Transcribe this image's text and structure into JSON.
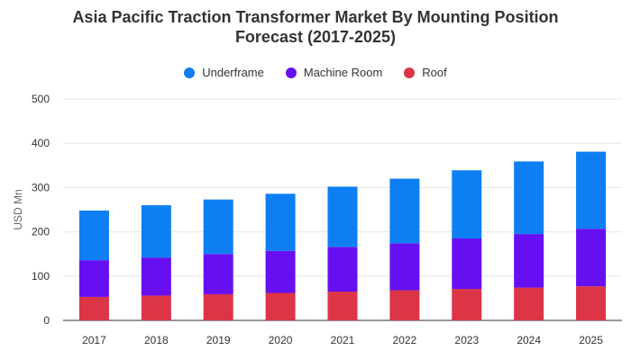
{
  "chart_data": {
    "type": "bar",
    "stacked": true,
    "title_line1": "Asia Pacific Traction Transformer Market By Mounting Position",
    "title_line2": "Forecast (2017-2025)",
    "ylabel": "USD Mn",
    "xlabel": "",
    "ylim": [
      0,
      500
    ],
    "yticks": [
      "0",
      "100",
      "200",
      "300",
      "400",
      "500"
    ],
    "ytick_values": [
      0,
      100,
      200,
      300,
      400,
      500
    ],
    "categories": [
      "2017",
      "2018",
      "2019",
      "2020",
      "2021",
      "2022",
      "2023",
      "2024",
      "2025"
    ],
    "series": [
      {
        "name": "Roof",
        "color": "#dc3545",
        "values": [
          53,
          56,
          59,
          62,
          65,
          68,
          71,
          74,
          77
        ]
      },
      {
        "name": "Machine Room",
        "color": "#6610f2",
        "values": [
          83,
          86,
          91,
          95,
          101,
          106,
          114,
          121,
          130
        ]
      },
      {
        "name": "Underframe",
        "color": "#0d7ff2",
        "values": [
          112,
          118,
          123,
          129,
          136,
          146,
          154,
          164,
          174
        ]
      }
    ],
    "legend_order": [
      "Underframe",
      "Machine Room",
      "Roof"
    ],
    "legend_colors": [
      "#0d7ff2",
      "#6610f2",
      "#dc3545"
    ],
    "legend_position": "top-center",
    "grid": true
  }
}
